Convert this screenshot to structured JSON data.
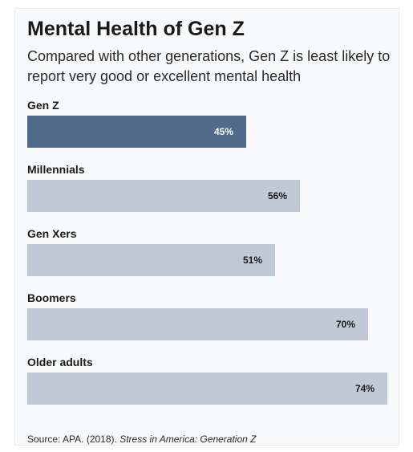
{
  "colors": {
    "highlight_bar": "#4f6a8a",
    "bar": "#c1c8d6",
    "highlight_value_text": "#ffffff",
    "value_text": "#1a1a1a"
  },
  "chart_data": {
    "type": "bar",
    "orientation": "horizontal",
    "title": "Mental Health of Gen Z",
    "subtitle": "Compared with other generations, Gen Z is least likely to report very good or excellent mental health",
    "categories": [
      "Gen Z",
      "Millennials",
      "Gen Xers",
      "Boomers",
      "Older adults"
    ],
    "values": [
      45,
      56,
      51,
      70,
      74
    ],
    "value_labels": [
      "45%",
      "56%",
      "51%",
      "70%",
      "74%"
    ],
    "highlighted_category": "Gen Z",
    "xlim": [
      0,
      74
    ],
    "grid": false,
    "legend": "none"
  },
  "source": {
    "prefix": "Source: APA. (2018).",
    "title": "Stress in America: Generation Z"
  }
}
